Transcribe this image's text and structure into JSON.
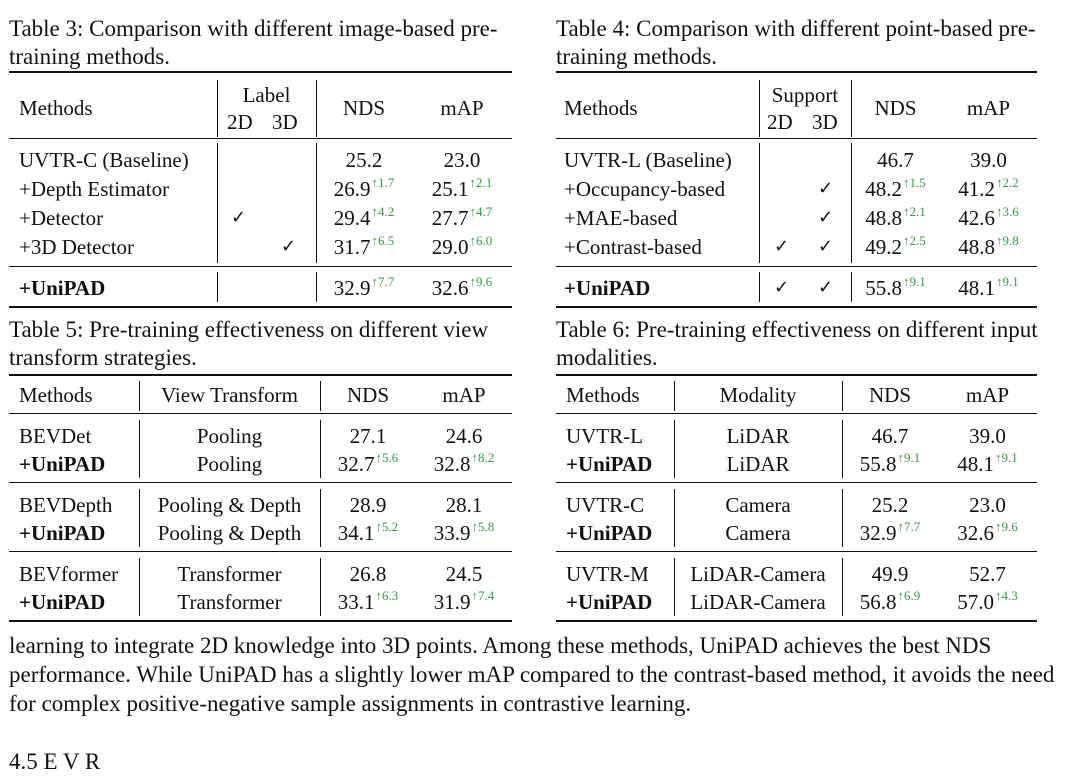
{
  "table3": {
    "caption": "Table 3:  Comparison  with  different  image-based pre-training methods.",
    "header": {
      "methods": "Methods",
      "label": "Label",
      "label_2d": "2D",
      "label_3d": "3D",
      "nds": "NDS",
      "map": "mAP"
    },
    "rows": [
      {
        "method": "UVTR-C (Baseline)",
        "c2d": "",
        "c3d": "",
        "nds": "25.2",
        "nds_gain": "",
        "map": "23.0",
        "map_gain": ""
      },
      {
        "method": "+Depth Estimator",
        "c2d": "",
        "c3d": "",
        "nds": "26.9",
        "nds_gain": "↑1.7",
        "map": "25.1",
        "map_gain": "↑2.1"
      },
      {
        "method": "+Detector",
        "c2d": "✓",
        "c3d": "",
        "nds": "29.4",
        "nds_gain": "↑4.2",
        "map": "27.7",
        "map_gain": "↑4.7"
      },
      {
        "method": "+3D Detector",
        "c2d": "",
        "c3d": "✓",
        "nds": "31.7",
        "nds_gain": "↑6.5",
        "map": "29.0",
        "map_gain": "↑6.0"
      }
    ],
    "final": {
      "method": "+UniPAD",
      "c2d": "",
      "c3d": "",
      "nds": "32.9",
      "nds_gain": "↑7.7",
      "map": "32.6",
      "map_gain": "↑9.6"
    }
  },
  "table4": {
    "caption": "Table 4:  Comparison  with  different  point-based pre-training methods.",
    "header": {
      "methods": "Methods",
      "support": "Support",
      "s_2d": "2D",
      "s_3d": "3D",
      "nds": "NDS",
      "map": "mAP"
    },
    "rows": [
      {
        "method": "UVTR-L (Baseline)",
        "c2d": "",
        "c3d": "",
        "nds": "46.7",
        "nds_gain": "",
        "map": "39.0",
        "map_gain": ""
      },
      {
        "method": "+Occupancy-based",
        "c2d": "",
        "c3d": "✓",
        "nds": "48.2",
        "nds_gain": "↑1.5",
        "map": "41.2",
        "map_gain": "↑2.2"
      },
      {
        "method": "+MAE-based",
        "c2d": "",
        "c3d": "✓",
        "nds": "48.8",
        "nds_gain": "↑2.1",
        "map": "42.6",
        "map_gain": "↑3.6"
      },
      {
        "method": "+Contrast-based",
        "c2d": "✓",
        "c3d": "✓",
        "nds": "49.2",
        "nds_gain": "↑2.5",
        "map": "48.8",
        "map_gain": "↑9.8"
      }
    ],
    "final": {
      "method": "+UniPAD",
      "c2d": "✓",
      "c3d": "✓",
      "nds": "55.8",
      "nds_gain": "↑9.1",
      "map": "48.1",
      "map_gain": "↑9.1"
    }
  },
  "table5": {
    "caption": "Table 5: Pre-training effectiveness on different view transform strategies.",
    "header": {
      "methods": "Methods",
      "col": "View Transform",
      "nds": "NDS",
      "map": "mAP"
    },
    "groups": [
      [
        {
          "method": "BEVDet",
          "vt": "Pooling",
          "nds": "27.1",
          "nds_gain": "",
          "map": "24.6",
          "map_gain": ""
        },
        {
          "method": "+UniPAD",
          "vt": "Pooling",
          "nds": "32.7",
          "nds_gain": "↑5.6",
          "map": "32.8",
          "map_gain": "↑8.2"
        }
      ],
      [
        {
          "method": "BEVDepth",
          "vt": "Pooling & Depth",
          "nds": "28.9",
          "nds_gain": "",
          "map": "28.1",
          "map_gain": ""
        },
        {
          "method": "+UniPAD",
          "vt": "Pooling & Depth",
          "nds": "34.1",
          "nds_gain": "↑5.2",
          "map": "33.9",
          "map_gain": "↑5.8"
        }
      ],
      [
        {
          "method": "BEVformer",
          "vt": "Transformer",
          "nds": "26.8",
          "nds_gain": "",
          "map": "24.5",
          "map_gain": ""
        },
        {
          "method": "+UniPAD",
          "vt": "Transformer",
          "nds": "33.1",
          "nds_gain": "↑6.3",
          "map": "31.9",
          "map_gain": "↑7.4"
        }
      ]
    ]
  },
  "table6": {
    "caption": "Table 6: Pre-training effectiveness on different input modalities.",
    "header": {
      "methods": "Methods",
      "col": "Modality",
      "nds": "NDS",
      "map": "mAP"
    },
    "groups": [
      [
        {
          "method": "UVTR-L",
          "vt": "LiDAR",
          "nds": "46.7",
          "nds_gain": "",
          "map": "39.0",
          "map_gain": ""
        },
        {
          "method": "+UniPAD",
          "vt": "LiDAR",
          "nds": "55.8",
          "nds_gain": "↑9.1",
          "map": "48.1",
          "map_gain": "↑9.1"
        }
      ],
      [
        {
          "method": "UVTR-C",
          "vt": "Camera",
          "nds": "25.2",
          "nds_gain": "",
          "map": "23.0",
          "map_gain": ""
        },
        {
          "method": "+UniPAD",
          "vt": "Camera",
          "nds": "32.9",
          "nds_gain": "↑7.7",
          "map": "32.6",
          "map_gain": "↑9.6"
        }
      ],
      [
        {
          "method": "UVTR-M",
          "vt": "LiDAR-Camera",
          "nds": "49.9",
          "nds_gain": "",
          "map": "52.7",
          "map_gain": ""
        },
        {
          "method": "+UniPAD",
          "vt": "LiDAR-Camera",
          "nds": "56.8",
          "nds_gain": "↑6.9",
          "map": "57.0",
          "map_gain": "↑4.3"
        }
      ]
    ]
  },
  "body_text": "learning to integrate 2D knowledge into 3D points. Among these methods, UniPAD achieves the best NDS performance. While UniPAD has a slightly lower mAP compared to the contrast-based method, it avoids the need for complex positive-negative sample assignments in contrastive learning.",
  "next_section": "4.5   E                    V          R"
}
